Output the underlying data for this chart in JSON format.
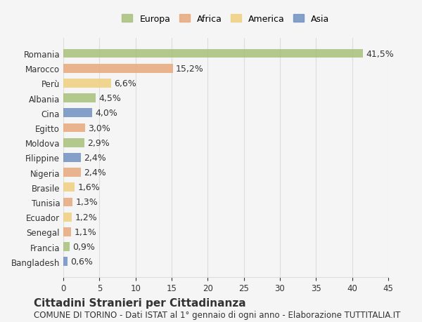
{
  "countries": [
    "Romania",
    "Marocco",
    "Perù",
    "Albania",
    "Cina",
    "Egitto",
    "Moldova",
    "Filippine",
    "Nigeria",
    "Brasile",
    "Tunisia",
    "Ecuador",
    "Senegal",
    "Francia",
    "Bangladesh"
  ],
  "values": [
    41.5,
    15.2,
    6.6,
    4.5,
    4.0,
    3.0,
    2.9,
    2.4,
    2.4,
    1.6,
    1.3,
    1.2,
    1.1,
    0.9,
    0.6
  ],
  "labels": [
    "41,5%",
    "15,2%",
    "6,6%",
    "4,5%",
    "4,0%",
    "3,0%",
    "2,9%",
    "2,4%",
    "2,4%",
    "1,6%",
    "1,3%",
    "1,2%",
    "1,1%",
    "0,9%",
    "0,6%"
  ],
  "continents": [
    "Europa",
    "Africa",
    "America",
    "Europa",
    "Asia",
    "Africa",
    "Europa",
    "Asia",
    "Africa",
    "America",
    "Africa",
    "America",
    "Africa",
    "Europa",
    "Asia"
  ],
  "colors": {
    "Europa": "#a8c07a",
    "Africa": "#e8a87c",
    "America": "#f0d080",
    "Asia": "#7090c0"
  },
  "legend_colors": {
    "Europa": "#a8c07a",
    "Africa": "#e8a87c",
    "America": "#f0d080",
    "Asia": "#7090c0"
  },
  "title": "Cittadini Stranieri per Cittadinanza",
  "subtitle": "COMUNE DI TORINO - Dati ISTAT al 1° gennaio di ogni anno - Elaborazione TUTTITALIA.IT",
  "xlim": [
    0,
    45
  ],
  "xticks": [
    0,
    5,
    10,
    15,
    20,
    25,
    30,
    35,
    40,
    45
  ],
  "background_color": "#f5f5f5",
  "bar_background": "#ffffff",
  "grid_color": "#dddddd",
  "text_color": "#333333",
  "label_fontsize": 9,
  "tick_fontsize": 8.5,
  "title_fontsize": 11,
  "subtitle_fontsize": 8.5
}
